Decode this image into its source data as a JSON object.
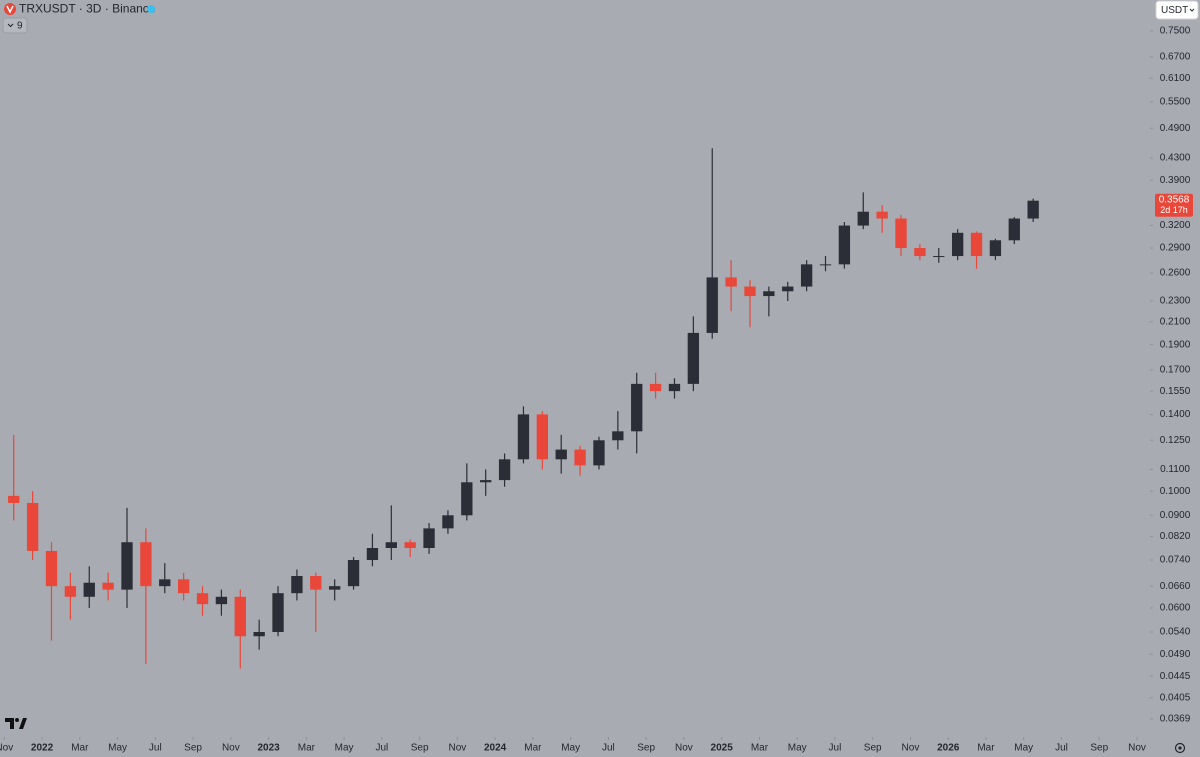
{
  "chart_data": {
    "type": "candlestick",
    "title": "TRXUSDT · 3D · Binance",
    "indicator_count": "9",
    "currency": "USDT",
    "countdown": "2d 17h",
    "last_price": 0.3568,
    "log_scale": true,
    "up_color": "#2b2e36",
    "down_color": "#e8473a",
    "x": [
      "2021-11",
      "2021-12",
      "2022-01",
      "2022-02",
      "2022-03",
      "2022-04",
      "2022-05",
      "2022-06",
      "2022-07",
      "2022-08",
      "2022-09",
      "2022-10",
      "2022-11",
      "2022-12",
      "2023-01",
      "2023-02",
      "2023-03",
      "2023-04",
      "2023-05",
      "2023-06",
      "2023-07",
      "2023-08",
      "2023-09",
      "2023-10",
      "2023-11",
      "2023-12",
      "2024-01",
      "2024-02",
      "2024-03",
      "2024-04",
      "2024-05",
      "2024-06",
      "2024-07",
      "2024-08",
      "2024-09",
      "2024-10",
      "2024-11",
      "2024-12",
      "2025-01",
      "2025-02",
      "2025-03",
      "2025-04",
      "2025-05",
      "2025-06",
      "2025-07",
      "2025-08",
      "2025-09",
      "2025-10",
      "2025-11",
      "2025-12",
      "2026-01",
      "2026-02",
      "2026-03",
      "2026-04",
      "2026-05"
    ],
    "open": [
      0.098,
      0.095,
      0.077,
      0.066,
      0.063,
      0.067,
      0.065,
      0.08,
      0.066,
      0.068,
      0.064,
      0.061,
      0.063,
      0.053,
      0.054,
      0.064,
      0.069,
      0.065,
      0.066,
      0.074,
      0.078,
      0.08,
      0.078,
      0.085,
      0.09,
      0.104,
      0.105,
      0.115,
      0.14,
      0.115,
      0.12,
      0.112,
      0.125,
      0.13,
      0.16,
      0.155,
      0.16,
      0.2,
      0.255,
      0.245,
      0.235,
      0.24,
      0.245,
      0.27,
      0.27,
      0.32,
      0.34,
      0.33,
      0.29,
      0.28,
      0.28,
      0.31,
      0.28,
      0.3,
      0.33
    ],
    "high": [
      0.128,
      0.1,
      0.08,
      0.07,
      0.072,
      0.07,
      0.093,
      0.085,
      0.073,
      0.07,
      0.066,
      0.065,
      0.065,
      0.057,
      0.066,
      0.071,
      0.07,
      0.068,
      0.075,
      0.083,
      0.094,
      0.081,
      0.087,
      0.092,
      0.113,
      0.11,
      0.118,
      0.145,
      0.142,
      0.128,
      0.122,
      0.127,
      0.142,
      0.168,
      0.168,
      0.164,
      0.215,
      0.449,
      0.275,
      0.252,
      0.245,
      0.25,
      0.275,
      0.28,
      0.325,
      0.37,
      0.35,
      0.335,
      0.295,
      0.29,
      0.315,
      0.312,
      0.302,
      0.332,
      0.36
    ],
    "low": [
      0.088,
      0.074,
      0.052,
      0.057,
      0.06,
      0.062,
      0.06,
      0.047,
      0.064,
      0.062,
      0.058,
      0.058,
      0.046,
      0.05,
      0.053,
      0.062,
      0.054,
      0.062,
      0.065,
      0.072,
      0.074,
      0.075,
      0.076,
      0.083,
      0.088,
      0.098,
      0.102,
      0.113,
      0.11,
      0.108,
      0.107,
      0.11,
      0.12,
      0.118,
      0.15,
      0.15,
      0.155,
      0.195,
      0.22,
      0.205,
      0.215,
      0.23,
      0.24,
      0.262,
      0.265,
      0.315,
      0.31,
      0.28,
      0.275,
      0.272,
      0.275,
      0.265,
      0.275,
      0.295,
      0.325
    ],
    "close": [
      0.095,
      0.077,
      0.066,
      0.063,
      0.067,
      0.065,
      0.08,
      0.066,
      0.068,
      0.064,
      0.061,
      0.063,
      0.053,
      0.054,
      0.064,
      0.069,
      0.065,
      0.066,
      0.074,
      0.078,
      0.08,
      0.078,
      0.085,
      0.09,
      0.104,
      0.105,
      0.115,
      0.14,
      0.115,
      0.12,
      0.112,
      0.125,
      0.13,
      0.16,
      0.155,
      0.16,
      0.2,
      0.255,
      0.245,
      0.235,
      0.24,
      0.245,
      0.27,
      0.27,
      0.32,
      0.34,
      0.33,
      0.29,
      0.28,
      0.28,
      0.31,
      0.28,
      0.3,
      0.33,
      0.3568
    ],
    "ylim": [
      0.0341,
      0.859
    ],
    "yticks": [
      {
        "value": 0.75,
        "label": "0.7500"
      },
      {
        "value": 0.67,
        "label": "0.6700"
      },
      {
        "value": 0.61,
        "label": "0.6100"
      },
      {
        "value": 0.55,
        "label": "0.5500"
      },
      {
        "value": 0.49,
        "label": "0.4900"
      },
      {
        "value": 0.43,
        "label": "0.4300"
      },
      {
        "value": 0.39,
        "label": "0.3900"
      },
      {
        "value": 0.32,
        "label": "0.3200"
      },
      {
        "value": 0.29,
        "label": "0.2900"
      },
      {
        "value": 0.26,
        "label": "0.2600"
      },
      {
        "value": 0.23,
        "label": "0.2300"
      },
      {
        "value": 0.21,
        "label": "0.2100"
      },
      {
        "value": 0.19,
        "label": "0.1900"
      },
      {
        "value": 0.17,
        "label": "0.1700"
      },
      {
        "value": 0.155,
        "label": "0.1550"
      },
      {
        "value": 0.14,
        "label": "0.1400"
      },
      {
        "value": 0.125,
        "label": "0.1250"
      },
      {
        "value": 0.11,
        "label": "0.1100"
      },
      {
        "value": 0.1,
        "label": "0.1000"
      },
      {
        "value": 0.09,
        "label": "0.0900"
      },
      {
        "value": 0.082,
        "label": "0.0820"
      },
      {
        "value": 0.074,
        "label": "0.0740"
      },
      {
        "value": 0.066,
        "label": "0.0660"
      },
      {
        "value": 0.06,
        "label": "0.0600"
      },
      {
        "value": 0.054,
        "label": "0.0540"
      },
      {
        "value": 0.049,
        "label": "0.0490"
      },
      {
        "value": 0.0445,
        "label": "0.0445"
      },
      {
        "value": 0.0405,
        "label": "0.0405"
      },
      {
        "value": 0.0369,
        "label": "0.0369"
      }
    ],
    "xticks": [
      {
        "value": "2021-11",
        "label": "Nov"
      },
      {
        "value": "2022-01",
        "label": "2022"
      },
      {
        "value": "2022-03",
        "label": "Mar"
      },
      {
        "value": "2022-05",
        "label": "May"
      },
      {
        "value": "2022-07",
        "label": "Jul"
      },
      {
        "value": "2022-09",
        "label": "Sep"
      },
      {
        "value": "2022-11",
        "label": "Nov"
      },
      {
        "value": "2023-01",
        "label": "2023"
      },
      {
        "value": "2023-03",
        "label": "Mar"
      },
      {
        "value": "2023-05",
        "label": "May"
      },
      {
        "value": "2023-07",
        "label": "Jul"
      },
      {
        "value": "2023-09",
        "label": "Sep"
      },
      {
        "value": "2023-11",
        "label": "Nov"
      },
      {
        "value": "2024-01",
        "label": "2024"
      },
      {
        "value": "2024-03",
        "label": "Mar"
      },
      {
        "value": "2024-05",
        "label": "May"
      },
      {
        "value": "2024-07",
        "label": "Jul"
      },
      {
        "value": "2024-09",
        "label": "Sep"
      },
      {
        "value": "2024-11",
        "label": "Nov"
      },
      {
        "value": "2025-01",
        "label": "2025"
      },
      {
        "value": "2025-03",
        "label": "Mar"
      },
      {
        "value": "2025-05",
        "label": "May"
      },
      {
        "value": "2025-07",
        "label": "Jul"
      },
      {
        "value": "2025-09",
        "label": "Sep"
      },
      {
        "value": "2025-11",
        "label": "Nov"
      },
      {
        "value": "2026-01",
        "label": "2026"
      },
      {
        "value": "2026-03",
        "label": "Mar"
      },
      {
        "value": "2026-05",
        "label": "May"
      },
      {
        "value": "2026-07",
        "label": "Jul"
      },
      {
        "value": "2026-09",
        "label": "Sep"
      },
      {
        "value": "2026-11",
        "label": "Nov"
      }
    ]
  }
}
